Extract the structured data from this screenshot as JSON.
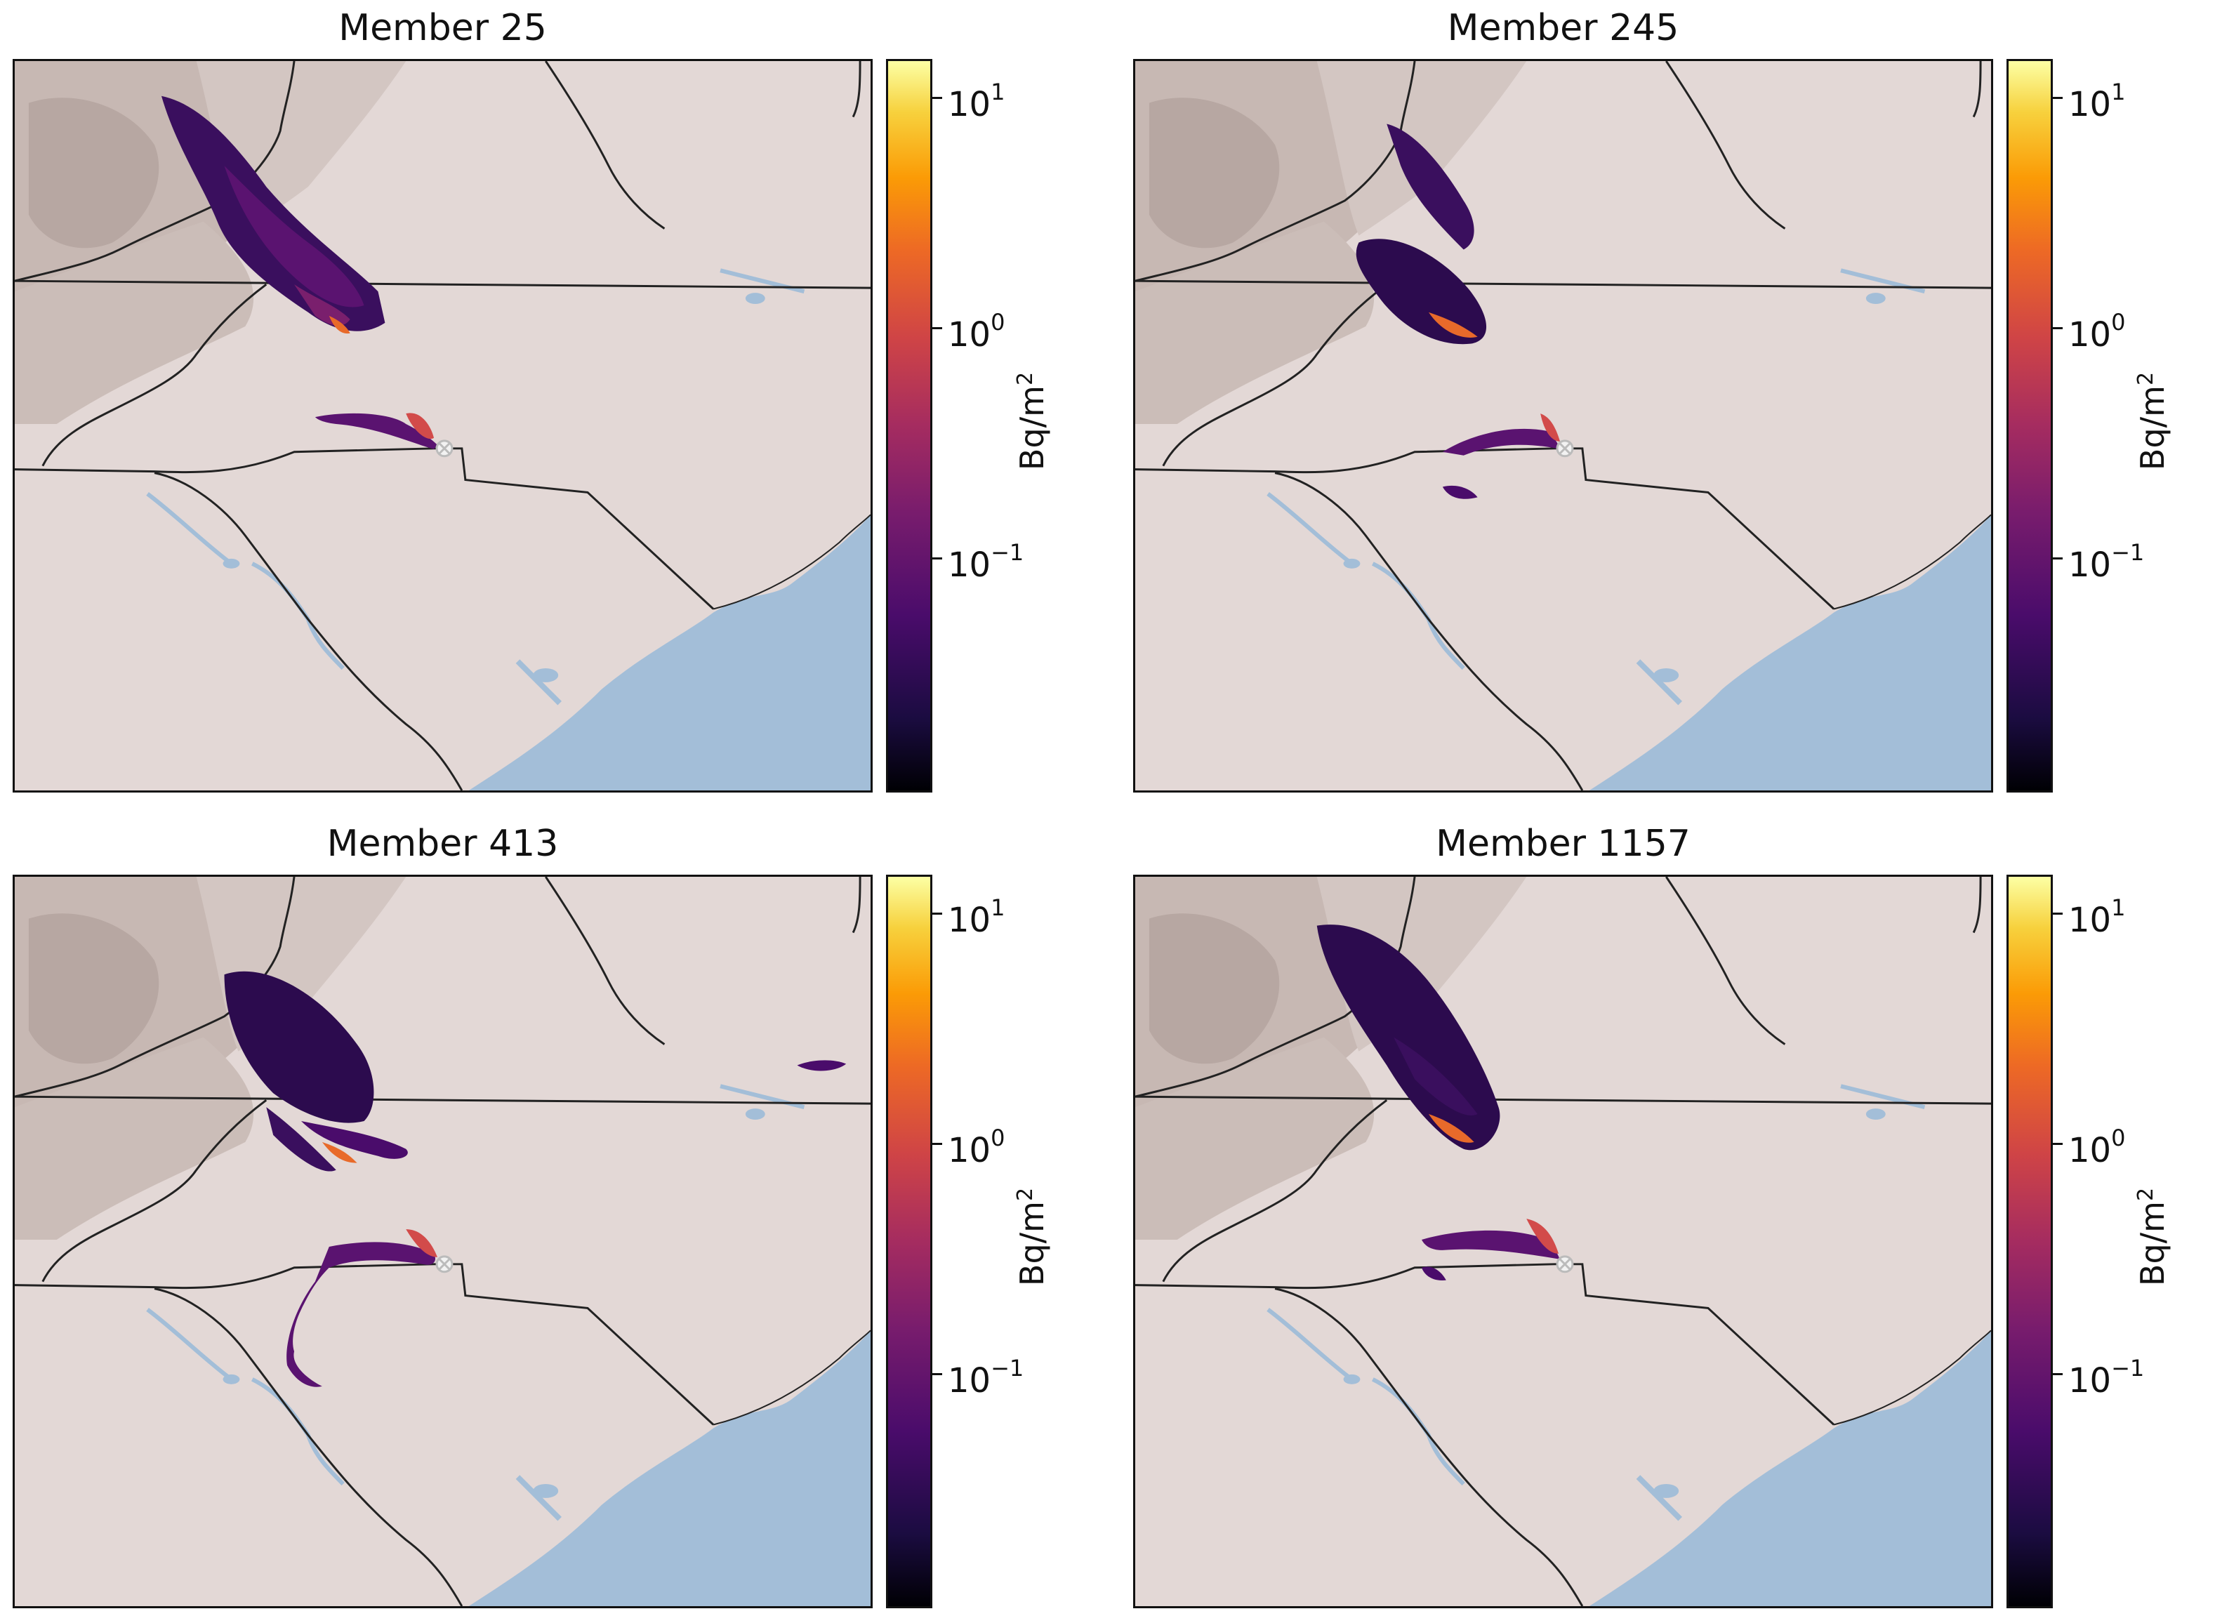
{
  "figure": {
    "panels": [
      {
        "title": "Member 25"
      },
      {
        "title": "Member 245"
      },
      {
        "title": "Member 413"
      },
      {
        "title": "Member 1157"
      }
    ],
    "colorbar": {
      "label_base": "Bq/m",
      "label_exp": "2",
      "ticks": [
        {
          "base": "10",
          "exp": "1",
          "value": 10
        },
        {
          "base": "10",
          "exp": "0",
          "value": 1
        },
        {
          "base": "10",
          "exp": "−1",
          "value": 0.1
        }
      ],
      "range": [
        0.012,
        14
      ],
      "scale": "log",
      "colormap": "inferno"
    },
    "colors": {
      "land": "#e3d8d6",
      "mountains": "#b9aaa5",
      "water": "#a3bed8",
      "borders": "#222222",
      "source_marker": "#f2f2f2"
    }
  }
}
